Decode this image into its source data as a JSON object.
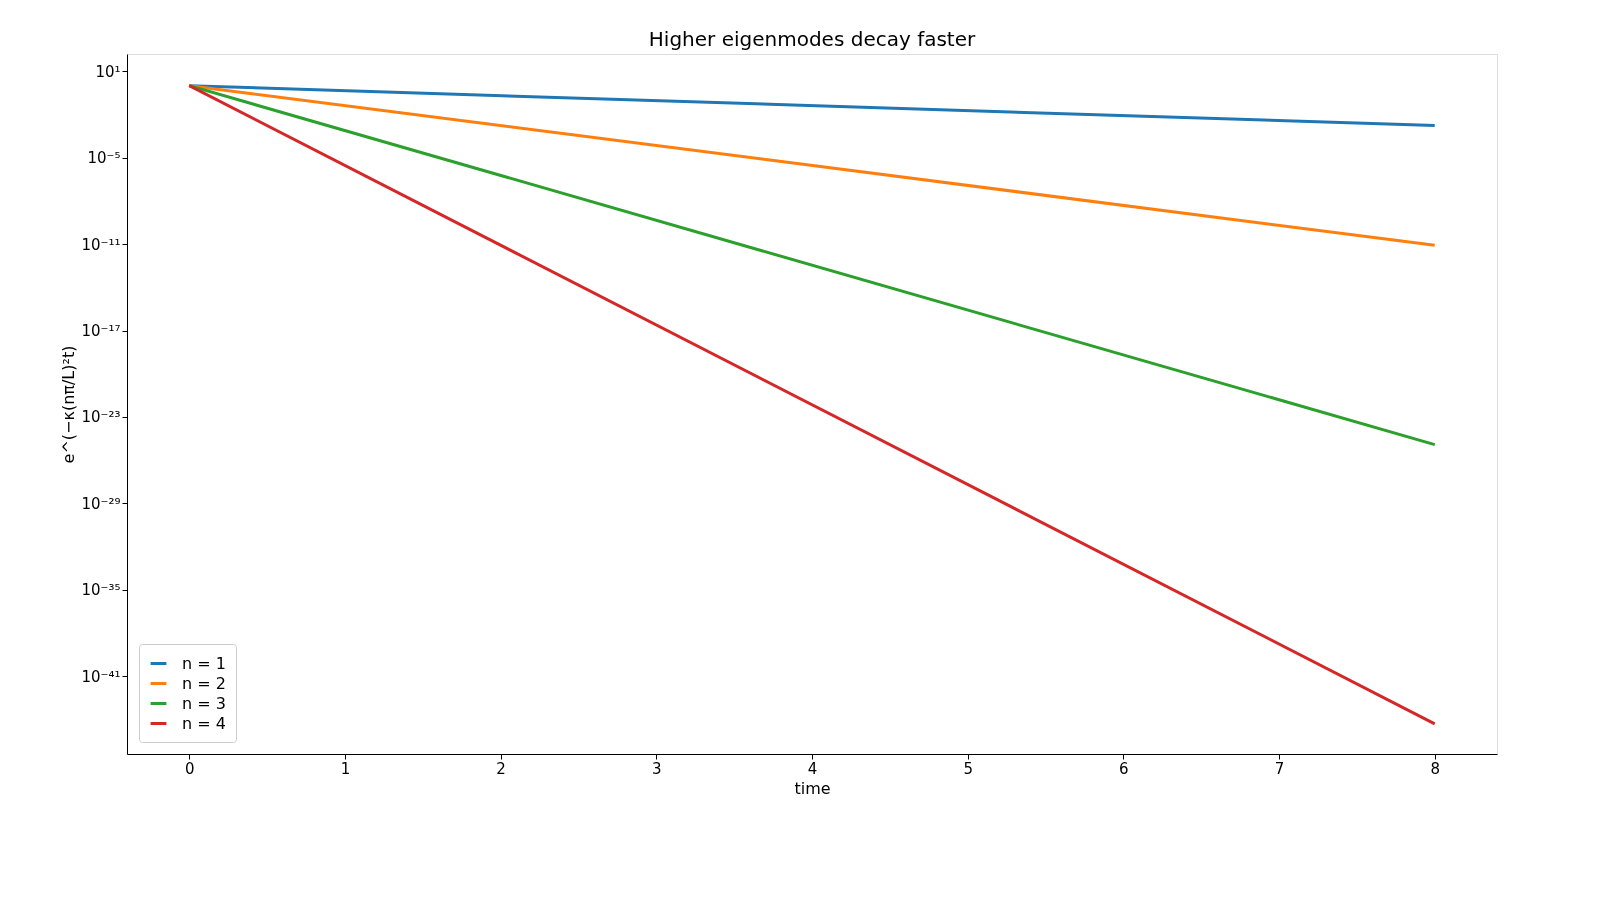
{
  "chart_data": {
    "type": "line",
    "title": "Higher eigenmodes decay faster",
    "xlabel": "time",
    "ylabel": "e^(−κ(nπ/L)²t)",
    "x": [
      0,
      8
    ],
    "series": [
      {
        "name": "n = 1",
        "color": "#1f77b4",
        "values": [
          1,
          0.0017
        ]
      },
      {
        "name": "n = 2",
        "color": "#ff7f0e",
        "values": [
          1,
          8.3e-12
        ]
      },
      {
        "name": "n = 3",
        "color": "#2ca02c",
        "values": [
          1,
          1.2e-25
        ]
      },
      {
        "name": "n = 4",
        "color": "#d62728",
        "values": [
          1,
          5e-45
        ]
      }
    ],
    "log": "y",
    "xlim": [
      -0.4,
      8.4
    ],
    "ylim": [
      4e-47,
      158
    ],
    "xticks": [
      0,
      1,
      2,
      3,
      4,
      5,
      6,
      7,
      8
    ],
    "yticks": [
      {
        "value": 10,
        "label": "10¹"
      },
      {
        "value": 1e-05,
        "label": "10⁻⁵"
      },
      {
        "value": 1e-11,
        "label": "10⁻¹¹"
      },
      {
        "value": 1e-17,
        "label": "10⁻¹⁷"
      },
      {
        "value": 1e-23,
        "label": "10⁻²³"
      },
      {
        "value": 1e-29,
        "label": "10⁻²⁹"
      },
      {
        "value": 1e-35,
        "label": "10⁻³⁵"
      },
      {
        "value": 1e-41,
        "label": "10⁻⁴¹"
      }
    ],
    "grid": false,
    "legend": "bottom left",
    "line_style": "solid",
    "marker": "none"
  }
}
